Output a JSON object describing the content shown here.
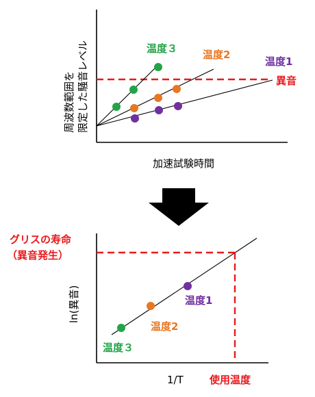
{
  "top_chart": {
    "y_axis_label_line1": "周波数範囲を",
    "y_axis_label_line2": "限定した騒音レベル",
    "x_axis_label": "加速試験時間",
    "threshold_label": "異音",
    "series": [
      {
        "name": "温度３",
        "color": "#22a447"
      },
      {
        "name": "温度2",
        "color": "#e87722"
      },
      {
        "name": "温度1",
        "color": "#7030a0"
      }
    ]
  },
  "arrow": {
    "direction": "down",
    "color": "#000000"
  },
  "bottom_chart": {
    "y_axis_label": "ln(異音)",
    "x_axis_label": "1/T",
    "x_marker_label": "使用温度",
    "y_marker_label_line1": "グリスの寿命",
    "y_marker_label_line2": "（異音発生）",
    "points": [
      {
        "name": "温度1",
        "color": "#7030a0"
      },
      {
        "name": "温度2",
        "color": "#e87722"
      },
      {
        "name": "温度３",
        "color": "#22a447"
      }
    ]
  },
  "colors": {
    "green": "#22a447",
    "orange": "#e87722",
    "purple": "#7030a0",
    "red": "#e8191c",
    "black": "#000000"
  }
}
